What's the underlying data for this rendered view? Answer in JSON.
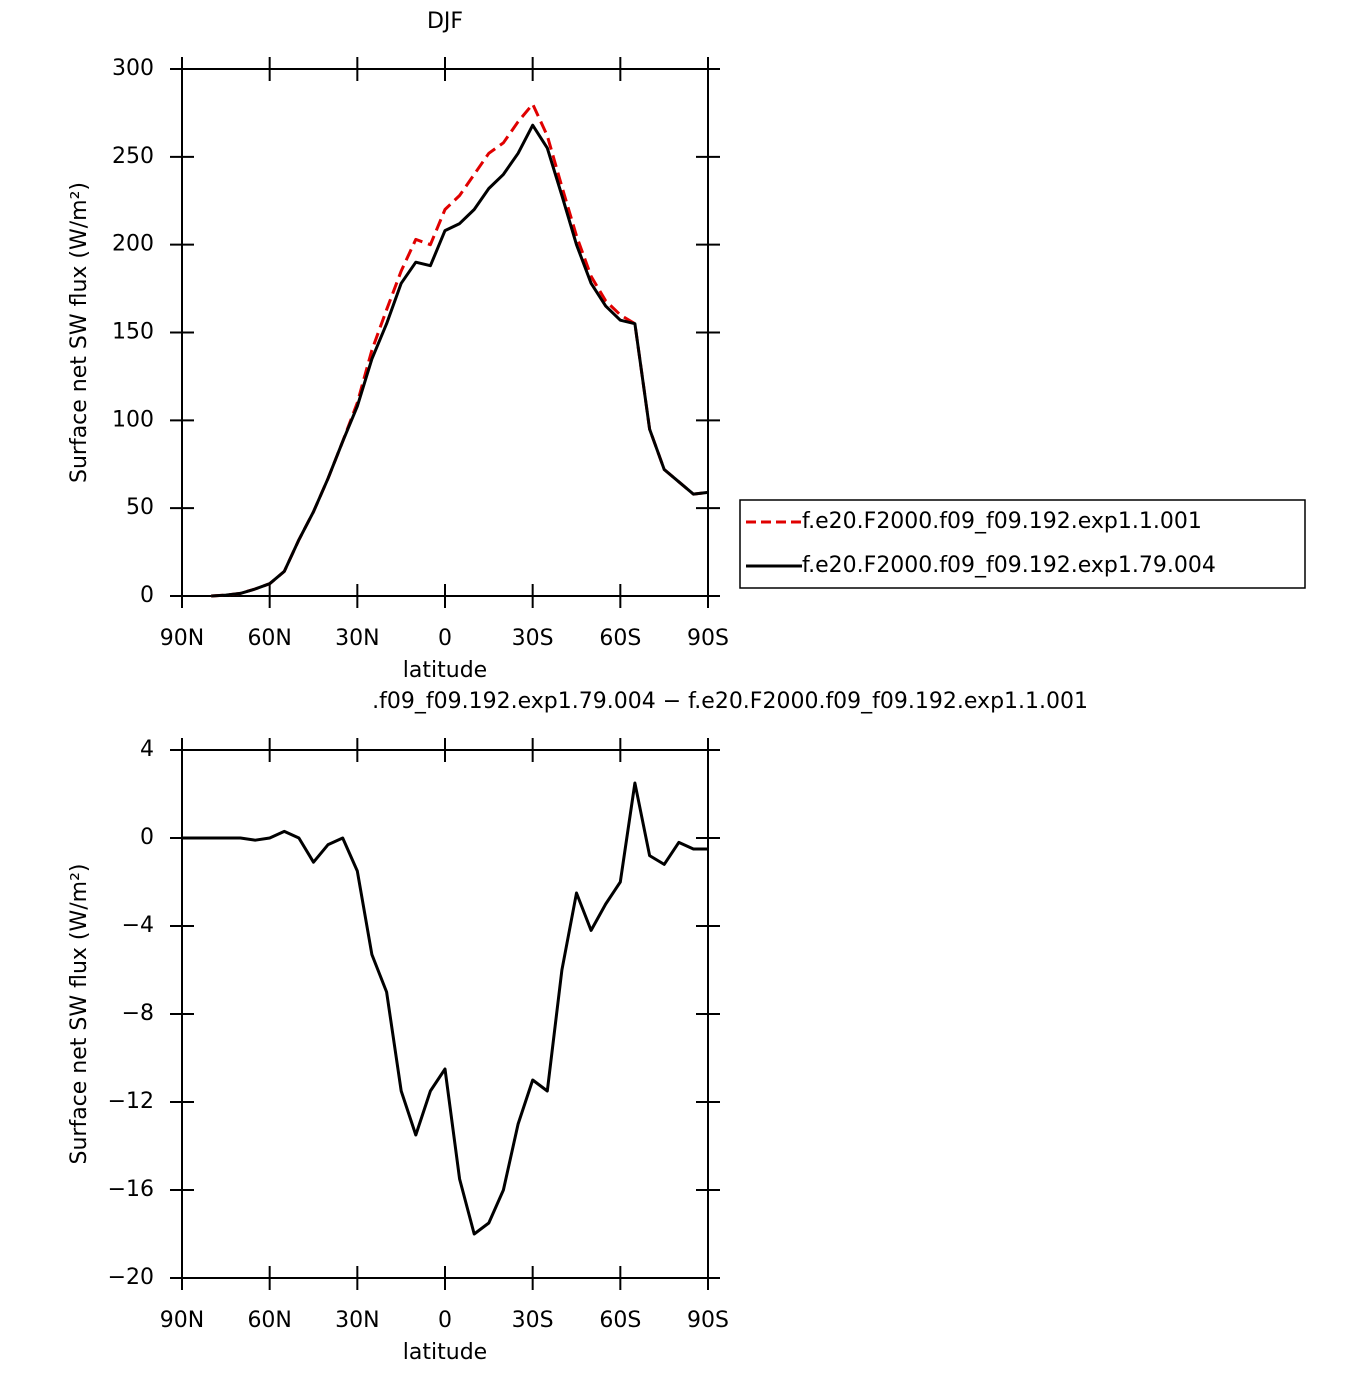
{
  "chart_data": [
    {
      "type": "line",
      "title": "DJF",
      "xlabel": "latitude",
      "ylabel": "Surface net SW flux (W/m²)",
      "x": [
        90,
        85,
        80,
        75,
        70,
        65,
        60,
        55,
        50,
        45,
        40,
        35,
        30,
        25,
        20,
        15,
        10,
        5,
        0,
        -5,
        -10,
        -15,
        -20,
        -25,
        -30,
        -35,
        -40,
        -45,
        -50,
        -55,
        -60,
        -65,
        -70,
        -75,
        -80,
        -85,
        -90
      ],
      "xlim": [
        90,
        -90
      ],
      "xticks": [
        {
          "value": 90,
          "label": "90N"
        },
        {
          "value": 60,
          "label": "60N"
        },
        {
          "value": 30,
          "label": "30N"
        },
        0,
        {
          "value": -30,
          "label": "30S"
        },
        {
          "value": -60,
          "label": "60S"
        },
        {
          "value": -90,
          "label": "90S"
        }
      ],
      "ylim": [
        0,
        300
      ],
      "yticks": [
        0,
        50,
        100,
        150,
        200,
        250,
        300
      ],
      "legend": "right",
      "series": [
        {
          "name": "f.e20.F2000.f09_f09.192.exp1.1.001",
          "color": "#e00000",
          "dashed": true,
          "values": [
            null,
            null,
            0,
            0.5,
            1.5,
            4,
            7,
            14,
            32,
            48,
            67,
            88,
            110,
            140,
            163,
            185,
            203,
            200,
            220,
            228,
            240,
            252,
            258,
            270,
            280,
            262,
            233,
            205,
            182,
            168,
            160,
            155,
            95,
            72,
            65,
            58,
            59
          ]
        },
        {
          "name": "f.e20.F2000.f09_f09.192.exp1.79.004",
          "color": "#000000",
          "dashed": false,
          "values": [
            null,
            null,
            0,
            0.5,
            1.5,
            4,
            7,
            14,
            32,
            48,
            67,
            88,
            108,
            135,
            155,
            178,
            190,
            188,
            208,
            212,
            220,
            232,
            240,
            252,
            268,
            255,
            228,
            200,
            178,
            165,
            157,
            155,
            95,
            72,
            65,
            58,
            59
          ]
        }
      ]
    },
    {
      "type": "line",
      "title": ".f09_f09.192.exp1.79.004 − f.e20.F2000.f09_f09.192.exp1.1.001",
      "xlabel": "latitude",
      "ylabel": "Surface net SW flux (W/m²)",
      "x": [
        90,
        85,
        80,
        75,
        70,
        65,
        60,
        55,
        50,
        45,
        40,
        35,
        30,
        25,
        20,
        15,
        10,
        5,
        0,
        -5,
        -10,
        -15,
        -20,
        -25,
        -30,
        -35,
        -40,
        -45,
        -50,
        -55,
        -60,
        -65,
        -70,
        -75,
        -80,
        -85,
        -90
      ],
      "xlim": [
        90,
        -90
      ],
      "xticks": [
        {
          "value": 90,
          "label": "90N"
        },
        {
          "value": 60,
          "label": "60N"
        },
        {
          "value": 30,
          "label": "30N"
        },
        0,
        {
          "value": -30,
          "label": "30S"
        },
        {
          "value": -60,
          "label": "60S"
        },
        {
          "value": -90,
          "label": "90S"
        }
      ],
      "ylim": [
        -20,
        4
      ],
      "yticks": [
        {
          "value": -20,
          "label": "−20"
        },
        {
          "value": -16,
          "label": "−16"
        },
        {
          "value": -12,
          "label": "−12"
        },
        {
          "value": -8,
          "label": "−8"
        },
        {
          "value": -4,
          "label": "−4"
        },
        0,
        4
      ],
      "color": "#000000",
      "values": [
        0,
        0,
        0,
        0,
        0,
        -0.1,
        0,
        0.3,
        0,
        -1.1,
        -0.3,
        0,
        -1.5,
        -5.3,
        -7,
        -11.5,
        -13.5,
        -11.5,
        -10.5,
        -15.5,
        -18,
        -17.5,
        -16,
        -13,
        -11,
        -11.5,
        -6,
        -2.5,
        -4.2,
        -3,
        -2,
        2.5,
        -0.8,
        -1.2,
        -0.2,
        -0.5,
        -0.5
      ]
    }
  ]
}
